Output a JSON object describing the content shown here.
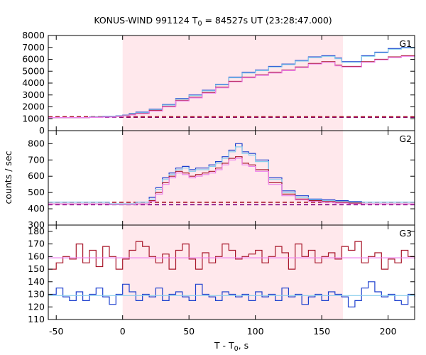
{
  "chart_data": [
    {
      "panel": "G1",
      "type": "line",
      "title": "KONUS-WIND 991124 T0 = 84527s UT (23:28:47.000)",
      "title_parts": {
        "before": "KONUS-WIND 991124 T",
        "sub": "0",
        "after": " = 84527s UT (23:28:47.000)"
      },
      "xlabel": "T - T0, s",
      "xlabel_parts": {
        "before": "T - T",
        "sub": "0",
        "after": ", s"
      },
      "ylabel": "counts / sec",
      "xlim": [
        -56,
        220
      ],
      "ylim": [
        0,
        8000
      ],
      "x_ticks": [
        -50,
        0,
        50,
        100,
        150,
        200
      ],
      "y_ticks": [
        0,
        1000,
        2000,
        3000,
        4000,
        5000,
        6000,
        7000,
        8000
      ],
      "shaded_interval": [
        0,
        166
      ],
      "series": [
        {
          "color": "#1c3fce",
          "x": [
            -56,
            -40,
            -25,
            -15,
            -5,
            0,
            5,
            10,
            20,
            30,
            40,
            50,
            60,
            70,
            80,
            90,
            100,
            110,
            120,
            130,
            140,
            150,
            160,
            165,
            180,
            190,
            200,
            210,
            220
          ],
          "values": [
            1100,
            1100,
            1150,
            1200,
            1250,
            1300,
            1450,
            1550,
            1800,
            2200,
            2700,
            3000,
            3400,
            3900,
            4500,
            4900,
            5100,
            5400,
            5600,
            5900,
            6200,
            6300,
            6100,
            5800,
            6300,
            6600,
            6900,
            7000,
            7050
          ]
        },
        {
          "color": "#87ceeb",
          "x": [
            -56,
            -40,
            -25,
            -15,
            -5,
            0,
            5,
            10,
            20,
            30,
            40,
            50,
            60,
            70,
            80,
            90,
            100,
            110,
            120,
            130,
            140,
            150,
            160,
            165,
            180,
            190,
            200,
            210,
            220
          ],
          "values": [
            1100,
            1100,
            1140,
            1180,
            1230,
            1280,
            1420,
            1500,
            1750,
            2150,
            2650,
            2950,
            3350,
            3850,
            4450,
            4850,
            5050,
            5350,
            5550,
            5850,
            6150,
            6250,
            6050,
            5750,
            6250,
            6550,
            6850,
            6950,
            7000
          ]
        },
        {
          "color": "#a8172a",
          "x": [
            -56,
            -40,
            -25,
            -15,
            -5,
            0,
            5,
            10,
            20,
            30,
            40,
            50,
            60,
            70,
            80,
            90,
            100,
            110,
            120,
            130,
            140,
            150,
            160,
            165,
            180,
            190,
            200,
            210,
            220
          ],
          "values": [
            1100,
            1100,
            1120,
            1150,
            1200,
            1250,
            1350,
            1450,
            1700,
            2050,
            2550,
            2800,
            3200,
            3650,
            4150,
            4500,
            4700,
            4900,
            5100,
            5350,
            5650,
            5800,
            5500,
            5400,
            5800,
            6000,
            6200,
            6300,
            6350
          ]
        },
        {
          "color": "#ee82ee",
          "x": [
            -56,
            -40,
            -25,
            -15,
            -5,
            0,
            5,
            10,
            20,
            30,
            40,
            50,
            60,
            70,
            80,
            90,
            100,
            110,
            120,
            130,
            140,
            150,
            160,
            165,
            180,
            190,
            200,
            210,
            220
          ],
          "values": [
            1100,
            1100,
            1110,
            1140,
            1180,
            1230,
            1320,
            1420,
            1650,
            2000,
            2500,
            2750,
            3150,
            3600,
            4100,
            4450,
            4650,
            4850,
            5050,
            5300,
            5600,
            5750,
            5450,
            5350,
            5750,
            5950,
            6150,
            6250,
            6300
          ]
        }
      ],
      "background_lines": [
        {
          "color": "#800080",
          "value": 1120,
          "style": "dashed"
        },
        {
          "color": "#a8172a",
          "value": 1170,
          "style": "dashed"
        }
      ]
    },
    {
      "panel": "G2",
      "type": "line",
      "ylim": [
        300,
        880
      ],
      "y_ticks": [
        300,
        400,
        500,
        600,
        700,
        800
      ],
      "series": [
        {
          "color": "#1c3fce",
          "x": [
            -56,
            -40,
            -25,
            -10,
            0,
            10,
            20,
            25,
            30,
            35,
            40,
            45,
            50,
            55,
            60,
            65,
            70,
            75,
            80,
            85,
            90,
            95,
            100,
            110,
            120,
            130,
            140,
            150,
            160,
            170,
            180,
            190,
            200,
            210,
            220
          ],
          "values": [
            440,
            440,
            440,
            430,
            430,
            440,
            470,
            530,
            590,
            620,
            650,
            660,
            640,
            650,
            650,
            670,
            690,
            720,
            760,
            800,
            750,
            740,
            700,
            590,
            510,
            480,
            460,
            455,
            450,
            445,
            440,
            440,
            440,
            440,
            440
          ]
        },
        {
          "color": "#87ceeb",
          "x": [
            -56,
            -40,
            -25,
            -10,
            0,
            10,
            20,
            25,
            30,
            35,
            40,
            45,
            50,
            55,
            60,
            65,
            70,
            75,
            80,
            85,
            90,
            95,
            100,
            110,
            120,
            130,
            140,
            150,
            160,
            170,
            180,
            190,
            200,
            210,
            220
          ],
          "values": [
            440,
            440,
            440,
            430,
            430,
            440,
            460,
            520,
            580,
            610,
            640,
            650,
            630,
            640,
            640,
            660,
            680,
            710,
            750,
            780,
            740,
            730,
            690,
            580,
            500,
            470,
            455,
            450,
            445,
            440,
            440,
            440,
            440,
            440,
            440
          ]
        },
        {
          "color": "#a8172a",
          "x": [
            -56,
            -40,
            -25,
            -10,
            0,
            10,
            20,
            25,
            30,
            35,
            40,
            45,
            50,
            55,
            60,
            65,
            70,
            75,
            80,
            85,
            90,
            95,
            100,
            110,
            120,
            130,
            140,
            150,
            160,
            170,
            180,
            190,
            200,
            210,
            220
          ],
          "values": [
            430,
            430,
            430,
            425,
            425,
            430,
            450,
            500,
            560,
            600,
            630,
            620,
            600,
            610,
            620,
            630,
            650,
            680,
            710,
            720,
            680,
            670,
            640,
            560,
            490,
            460,
            450,
            445,
            440,
            435,
            430,
            430,
            430,
            430,
            430
          ]
        },
        {
          "color": "#ee82ee",
          "x": [
            -56,
            -40,
            -25,
            -10,
            0,
            10,
            20,
            25,
            30,
            35,
            40,
            45,
            50,
            55,
            60,
            65,
            70,
            75,
            80,
            85,
            90,
            95,
            100,
            110,
            120,
            130,
            140,
            150,
            160,
            170,
            180,
            190,
            200,
            210,
            220
          ],
          "values": [
            430,
            430,
            430,
            425,
            425,
            430,
            445,
            490,
            550,
            590,
            620,
            610,
            590,
            600,
            610,
            620,
            640,
            670,
            700,
            710,
            670,
            660,
            630,
            550,
            480,
            455,
            445,
            440,
            435,
            430,
            430,
            430,
            430,
            430,
            430
          ]
        }
      ],
      "background_lines": [
        {
          "color": "#800080",
          "value": 425,
          "style": "dashed"
        },
        {
          "color": "#a8172a",
          "value": 440,
          "style": "dashed"
        }
      ]
    },
    {
      "panel": "G3",
      "type": "line",
      "ylim": [
        110,
        185
      ],
      "y_ticks": [
        110,
        120,
        130,
        140,
        150,
        160,
        170,
        180
      ],
      "series": [
        {
          "color": "#a8172a",
          "x": [
            -56,
            -50,
            -45,
            -40,
            -35,
            -30,
            -25,
            -20,
            -15,
            -10,
            -5,
            0,
            5,
            10,
            15,
            20,
            25,
            30,
            35,
            40,
            45,
            50,
            55,
            60,
            65,
            70,
            75,
            80,
            85,
            90,
            95,
            100,
            105,
            110,
            115,
            120,
            125,
            130,
            135,
            140,
            145,
            150,
            155,
            160,
            165,
            170,
            175,
            180,
            185,
            190,
            195,
            200,
            205,
            210,
            215,
            220
          ],
          "values": [
            150,
            155,
            160,
            158,
            170,
            155,
            165,
            152,
            168,
            160,
            150,
            158,
            165,
            172,
            168,
            160,
            155,
            162,
            150,
            165,
            170,
            158,
            150,
            163,
            155,
            160,
            170,
            165,
            158,
            160,
            162,
            165,
            155,
            160,
            168,
            163,
            150,
            170,
            160,
            165,
            155,
            160,
            163,
            158,
            168,
            165,
            172,
            155,
            160,
            163,
            150,
            158,
            155,
            165,
            160,
            158
          ]
        },
        {
          "color": "#ee82ee",
          "x": [
            -56,
            220
          ],
          "values": [
            159,
            159
          ]
        },
        {
          "color": "#1c3fce",
          "x": [
            -56,
            -50,
            -45,
            -40,
            -35,
            -30,
            -25,
            -20,
            -15,
            -10,
            -5,
            0,
            5,
            10,
            15,
            20,
            25,
            30,
            35,
            40,
            45,
            50,
            55,
            60,
            65,
            70,
            75,
            80,
            85,
            90,
            95,
            100,
            105,
            110,
            115,
            120,
            125,
            130,
            135,
            140,
            145,
            150,
            155,
            160,
            165,
            170,
            175,
            180,
            185,
            190,
            195,
            200,
            205,
            210,
            215,
            220
          ],
          "values": [
            130,
            135,
            128,
            125,
            132,
            125,
            130,
            135,
            128,
            122,
            130,
            138,
            132,
            125,
            130,
            128,
            135,
            125,
            130,
            132,
            128,
            125,
            138,
            130,
            128,
            125,
            132,
            130,
            128,
            130,
            125,
            132,
            128,
            130,
            125,
            135,
            128,
            130,
            122,
            128,
            130,
            125,
            132,
            130,
            128,
            120,
            125,
            135,
            140,
            132,
            128,
            130,
            125,
            122,
            130,
            128
          ]
        },
        {
          "color": "#87ceeb",
          "x": [
            -56,
            220
          ],
          "values": [
            129,
            129
          ]
        }
      ]
    }
  ]
}
